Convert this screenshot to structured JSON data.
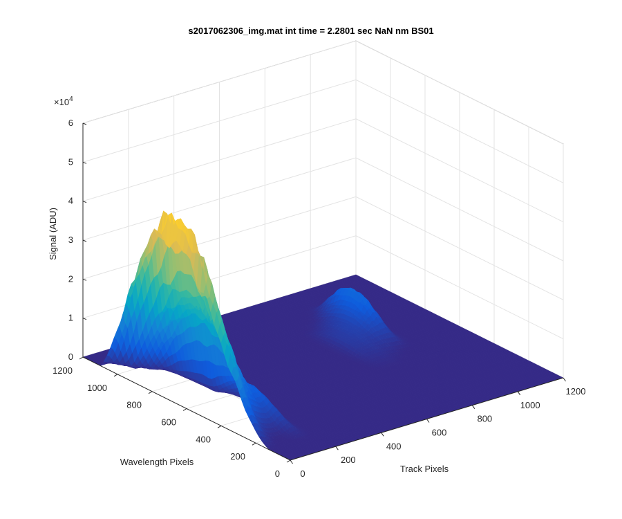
{
  "chart_data": {
    "type": "surface",
    "title": "s2017062306_img.mat int time = 2.2801 sec  NaN nm BS01",
    "xlabel": "Track Pixels",
    "ylabel": "Wavelength Pixels",
    "zlabel": "Signal (ADU)",
    "z_exponent_label": "×10",
    "z_exponent_power": "4",
    "x_ticks": [
      "0",
      "200",
      "400",
      "600",
      "800",
      "1000",
      "1200"
    ],
    "y_ticks": [
      "0",
      "200",
      "400",
      "600",
      "800",
      "1000",
      "1200"
    ],
    "z_ticks": [
      "0",
      "1",
      "2",
      "3",
      "4",
      "5",
      "6"
    ],
    "xlim": [
      0,
      1200
    ],
    "ylim": [
      0,
      1200
    ],
    "zlim": [
      0,
      60000
    ],
    "grid": true,
    "colormap": "parula",
    "colors": [
      "#352a87",
      "#0f5cdd",
      "#1481d6",
      "#06a7c6",
      "#38b99e",
      "#92bf73",
      "#d9ba56",
      "#fcce2e",
      "#f9fb0e"
    ],
    "peaks": [
      {
        "track_center": 0,
        "track_width": 30,
        "wavelength_range": [
          120,
          1100
        ],
        "max_signal": 53000
      },
      {
        "track_center": 30,
        "track_width": 25,
        "wavelength_range": [
          150,
          1050
        ],
        "max_signal": 40000
      },
      {
        "track_center": 65,
        "track_width": 30,
        "wavelength_range": [
          180,
          1000
        ],
        "max_signal": 30000
      },
      {
        "track_center": 105,
        "track_width": 30,
        "wavelength_range": [
          200,
          950
        ],
        "max_signal": 25000
      },
      {
        "track_center": 155,
        "track_width": 30,
        "wavelength_range": [
          120,
          650
        ],
        "max_signal": 10000
      },
      {
        "track_center": 920,
        "track_width": 35,
        "wavelength_range": [
          550,
          1050
        ],
        "max_signal": 13500
      },
      {
        "track_center": 870,
        "track_width": 30,
        "wavelength_range": [
          500,
          1000
        ],
        "max_signal": 6000
      },
      {
        "track_center": 820,
        "track_width": 30,
        "wavelength_range": [
          450,
          950
        ],
        "max_signal": 4000
      },
      {
        "track_center": 770,
        "track_width": 30,
        "wavelength_range": [
          450,
          900
        ],
        "max_signal": 3000
      }
    ]
  }
}
